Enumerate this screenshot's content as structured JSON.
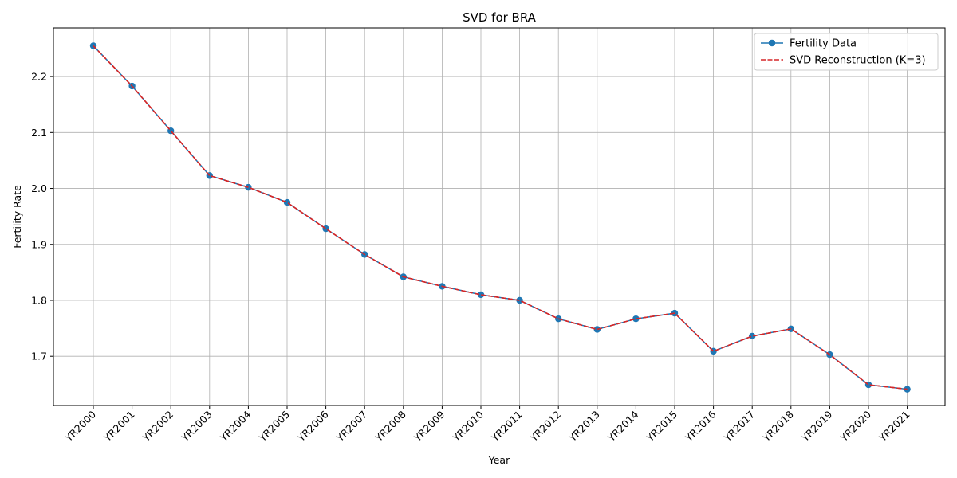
{
  "chart_data": {
    "type": "line",
    "title": "SVD for BRA",
    "xlabel": "Year",
    "ylabel": "Fertility Rate",
    "categories": [
      "YR2000",
      "YR2001",
      "YR2002",
      "YR2003",
      "YR2004",
      "YR2005",
      "YR2006",
      "YR2007",
      "YR2008",
      "YR2009",
      "YR2010",
      "YR2011",
      "YR2012",
      "YR2013",
      "YR2014",
      "YR2015",
      "YR2016",
      "YR2017",
      "YR2018",
      "YR2019",
      "YR2020",
      "YR2021"
    ],
    "ylim": [
      1.612,
      2.287
    ],
    "yticks": [
      1.7,
      1.8,
      1.9,
      2.0,
      2.1,
      2.2
    ],
    "ytick_labels": [
      "1.7",
      "1.8",
      "1.9",
      "2.0",
      "2.1",
      "2.2"
    ],
    "grid": true,
    "legend_position": "top-right",
    "series": [
      {
        "name": "Fertility Data",
        "color": "#1f77b4",
        "style": "solid",
        "marker": "circle",
        "values": [
          2.255,
          2.183,
          2.103,
          2.023,
          2.002,
          1.975,
          1.928,
          1.882,
          1.842,
          1.825,
          1.81,
          1.8,
          1.767,
          1.748,
          1.767,
          1.777,
          1.709,
          1.736,
          1.749,
          1.703,
          1.649,
          1.641
        ]
      },
      {
        "name": "SVD Reconstruction (K=3)",
        "color": "#d62728",
        "style": "dashed",
        "marker": "none",
        "values": [
          2.255,
          2.183,
          2.103,
          2.023,
          2.002,
          1.975,
          1.928,
          1.882,
          1.842,
          1.825,
          1.81,
          1.8,
          1.767,
          1.748,
          1.767,
          1.777,
          1.709,
          1.736,
          1.749,
          1.703,
          1.649,
          1.641
        ]
      }
    ]
  }
}
